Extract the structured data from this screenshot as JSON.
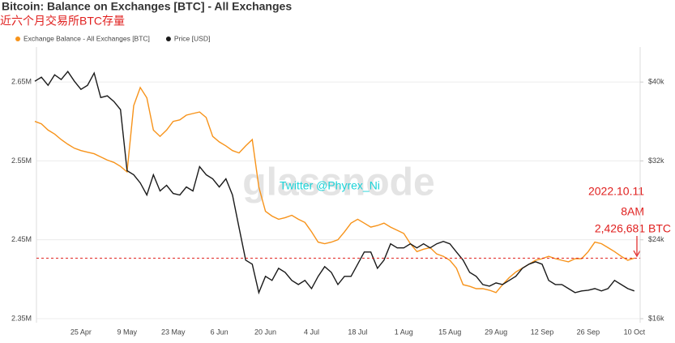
{
  "chart_data": {
    "type": "line",
    "title": "Bitcoin: Balance on Exchanges [BTC] - All Exchanges",
    "subtitle": "近六个月交易所BTC存量",
    "watermark": "glassnode",
    "credit": "Twitter @Phyrex_Ni",
    "annotations": [
      "2022.10.11",
      "8AM",
      "2,426,681 BTC"
    ],
    "categories": [
      null,
      null,
      null,
      null,
      null,
      null,
      null,
      "25 Apr",
      null,
      null,
      null,
      null,
      null,
      null,
      "9 May",
      null,
      null,
      null,
      null,
      null,
      null,
      "23 May",
      null,
      null,
      null,
      null,
      null,
      null,
      "6 Jun",
      null,
      null,
      null,
      null,
      null,
      null,
      "20 Jun",
      null,
      null,
      null,
      null,
      null,
      null,
      "4 Jul",
      null,
      null,
      null,
      null,
      null,
      null,
      "18 Jul",
      null,
      null,
      null,
      null,
      null,
      null,
      "1 Aug",
      null,
      null,
      null,
      null,
      null,
      null,
      "15 Aug",
      null,
      null,
      null,
      null,
      null,
      null,
      "29 Aug",
      null,
      null,
      null,
      null,
      null,
      null,
      "12 Sep",
      null,
      null,
      null,
      null,
      null,
      null,
      "26 Sep",
      null,
      null,
      null,
      null,
      null,
      null,
      "10 Oct"
    ],
    "series": [
      {
        "name": "Exchange Balance - All Exchanges [BTC]",
        "color": "#f7931a",
        "values": [
          2600000,
          2597000,
          2589000,
          2584000,
          2577000,
          2571000,
          2566000,
          2563000,
          2561000,
          2559000,
          2555000,
          2551000,
          2548000,
          2543000,
          2536000,
          2620000,
          2643000,
          2630000,
          2589000,
          2581000,
          2589000,
          2600000,
          2602000,
          2608000,
          2610000,
          2612000,
          2605000,
          2581000,
          2574000,
          2569000,
          2563000,
          2560000,
          2569000,
          2577000,
          2517000,
          2486000,
          2480000,
          2476000,
          2478000,
          2481000,
          2476000,
          2472000,
          2460000,
          2447000,
          2445000,
          2447000,
          2450000,
          2460000,
          2471000,
          2476000,
          2471000,
          2466000,
          2468000,
          2471000,
          2466000,
          2462000,
          2458000,
          2445000,
          2435000,
          2438000,
          2440000,
          2432000,
          2429000,
          2424000,
          2414000,
          2393000,
          2391000,
          2388000,
          2388000,
          2386000,
          2383000,
          2393000,
          2402000,
          2409000,
          2414000,
          2419000,
          2424000,
          2426000,
          2429000,
          2426000,
          2424000,
          2422000,
          2426000,
          2426000,
          2435000,
          2447000,
          2445000,
          2440000,
          2435000,
          2429000,
          2424000,
          2426681
        ]
      },
      {
        "name": "Price [USD]",
        "color": "#1a1a1a",
        "axis": "y2",
        "values": [
          40080,
          40490,
          39670,
          40740,
          40250,
          41070,
          40080,
          39260,
          39670,
          40910,
          38430,
          38600,
          38020,
          37200,
          31010,
          30600,
          29770,
          28540,
          30600,
          28950,
          29530,
          28700,
          28540,
          29360,
          28950,
          31420,
          30600,
          30190,
          29360,
          30190,
          28540,
          25240,
          21940,
          21530,
          18640,
          20290,
          19880,
          21110,
          20700,
          19880,
          19460,
          19880,
          19050,
          20290,
          21280,
          20700,
          19460,
          20290,
          20290,
          21530,
          22760,
          22760,
          21110,
          21940,
          23590,
          23180,
          23180,
          23590,
          23180,
          23590,
          23180,
          23590,
          23840,
          23590,
          22760,
          21940,
          20700,
          20290,
          19460,
          19300,
          19630,
          19460,
          19880,
          20290,
          21110,
          21530,
          21770,
          21530,
          19880,
          19460,
          19460,
          19050,
          18640,
          18810,
          18890,
          19050,
          18810,
          19050,
          19880,
          19460,
          19050,
          18810
        ]
      }
    ],
    "ylim": [
      2344800,
      2694300
    ],
    "yticks": [
      {
        "value": 2350000,
        "label": "2.35M"
      },
      {
        "value": 2450000,
        "label": "2.45M"
      },
      {
        "value": 2550000,
        "label": "2.55M"
      },
      {
        "value": 2650000,
        "label": "2.65M"
      }
    ],
    "y2lim": [
      15590,
      43550
    ],
    "y2ticks": [
      {
        "value": 16000,
        "label": "$16k"
      },
      {
        "value": 24000,
        "label": "$24k"
      },
      {
        "value": 32000,
        "label": "$32k"
      },
      {
        "value": 40000,
        "label": "$40k"
      }
    ],
    "grid": true
  }
}
